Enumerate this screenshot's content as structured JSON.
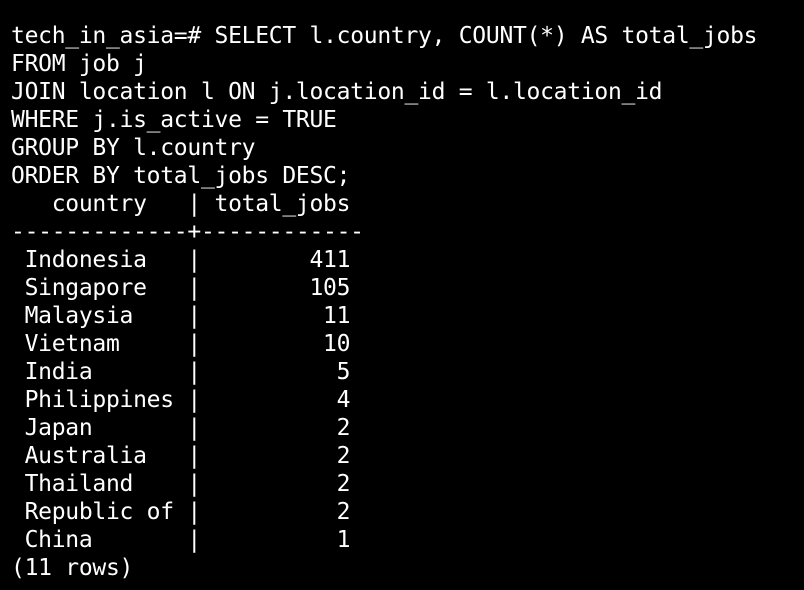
{
  "terminal": {
    "prompt": "tech_in_asia=#",
    "query_lines": [
      "SELECT l.country, COUNT(*) AS total_jobs",
      "FROM job j",
      "JOIN location l ON j.location_id = l.location_id",
      "WHERE j.is_active = TRUE",
      "GROUP BY l.country",
      "ORDER BY total_jobs DESC;"
    ],
    "result": {
      "header_line": "   country   | total_jobs",
      "separator_line": "-------------+------------",
      "rows": [
        " Indonesia   |        411",
        " Singapore   |        105",
        " Malaysia    |         11",
        " Vietnam     |         10",
        " India       |          5",
        " Philippines |          4",
        " Japan       |          2",
        " Australia   |          2",
        " Thailand    |          2",
        " Republic of |          2",
        " China       |          1"
      ],
      "footer": "(11 rows)"
    },
    "colors": {
      "background": "#000000",
      "text": "#ffffff"
    }
  }
}
